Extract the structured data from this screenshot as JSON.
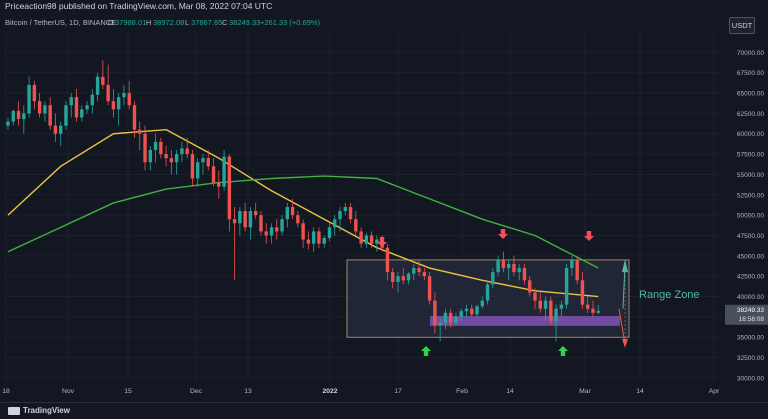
{
  "header": {
    "published_by": "Priceaction98 published on TradingView.com, Mar 08, 2022 07:04 UTC"
  },
  "symbol": {
    "name": "Bitcoin / TetherUS, 1D, BINANCE",
    "o_label": "O",
    "o_value": "37988.01",
    "h_label": "H",
    "h_value": "38972.08",
    "l_label": "L",
    "l_value": "37867.65",
    "c_label": "C",
    "c_value": "38249.33",
    "change": "+261.33 (+0.69%)"
  },
  "currency_button": "USDT",
  "footer": {
    "brand": "TradingView"
  },
  "colors": {
    "background": "#131722",
    "up": "#26a69a",
    "down": "#ef5350",
    "ma_fast": "#e9c440",
    "ma_slow": "#3fb23f",
    "zone_fill": "#2b3346",
    "support_band": "#8e59c6",
    "range_label": "#4fb8a6",
    "arrow_down": "#f24f5f",
    "arrow_up": "#2fd44e"
  },
  "chart_data": {
    "type": "candlestick",
    "x_tick_labels": [
      "18",
      "Nov",
      "15",
      "Dec",
      "13",
      "2022",
      "17",
      "Feb",
      "14",
      "Mar",
      "14",
      "Apr"
    ],
    "y_tick_labels": [
      "70000.00",
      "67500.00",
      "65000.00",
      "62500.00",
      "60000.00",
      "57500.00",
      "55000.00",
      "52500.00",
      "50000.00",
      "47500.00",
      "45000.00",
      "42500.00",
      "40000.00",
      "37500.00",
      "35000.00",
      "32500.00",
      "30000.00"
    ],
    "ylim": [
      29500,
      72500
    ],
    "last_price": "38249.33",
    "countdown": "16:56:08",
    "annotations": {
      "range_zone_label": "Range Zone",
      "range_top": 44500,
      "range_bottom": 35000,
      "support_band": [
        36400,
        37600
      ]
    },
    "candles": [
      [
        61000,
        62000,
        60500,
        61500
      ],
      [
        61500,
        63000,
        61000,
        62800
      ],
      [
        62800,
        64000,
        61000,
        61800
      ],
      [
        61800,
        63500,
        60000,
        62500
      ],
      [
        62500,
        67000,
        62000,
        66000
      ],
      [
        66000,
        66500,
        63000,
        64000
      ],
      [
        64000,
        65000,
        62000,
        62500
      ],
      [
        62500,
        64000,
        61500,
        63500
      ],
      [
        63500,
        64500,
        60500,
        61000
      ],
      [
        61000,
        62500,
        59000,
        60000
      ],
      [
        60000,
        61500,
        58500,
        61000
      ],
      [
        61000,
        64000,
        60500,
        63500
      ],
      [
        63500,
        65000,
        62000,
        64500
      ],
      [
        64500,
        65500,
        61500,
        62000
      ],
      [
        62000,
        63500,
        61500,
        63000
      ],
      [
        63000,
        64000,
        62500,
        63500
      ],
      [
        63500,
        65500,
        62500,
        64800
      ],
      [
        64800,
        67500,
        64000,
        67000
      ],
      [
        67000,
        69000,
        65500,
        66000
      ],
      [
        66000,
        68500,
        63500,
        64000
      ],
      [
        64000,
        65500,
        62000,
        63000
      ],
      [
        63000,
        65000,
        61000,
        64500
      ],
      [
        64500,
        66000,
        63500,
        65000
      ],
      [
        65000,
        66500,
        63000,
        63500
      ],
      [
        63500,
        64000,
        59500,
        60500
      ],
      [
        60500,
        61500,
        58000,
        60000
      ],
      [
        60000,
        61000,
        55500,
        56500
      ],
      [
        56500,
        58500,
        55500,
        58000
      ],
      [
        58000,
        60000,
        56500,
        59000
      ],
      [
        59000,
        59500,
        57000,
        57500
      ],
      [
        57500,
        58500,
        56000,
        57000
      ],
      [
        57000,
        58000,
        55000,
        56500
      ],
      [
        56500,
        58000,
        55000,
        57500
      ],
      [
        57500,
        59000,
        56500,
        58200
      ],
      [
        58200,
        59500,
        57000,
        57500
      ],
      [
        57500,
        58000,
        53500,
        54500
      ],
      [
        54500,
        57000,
        53500,
        56500
      ],
      [
        56500,
        57500,
        55000,
        57000
      ],
      [
        57000,
        58000,
        55500,
        56000
      ],
      [
        56000,
        57000,
        53500,
        54000
      ],
      [
        54000,
        55500,
        52000,
        53500
      ],
      [
        53500,
        58000,
        53000,
        57200
      ],
      [
        57200,
        57500,
        48000,
        49500
      ],
      [
        49500,
        51000,
        42000,
        49000
      ],
      [
        49000,
        51000,
        47500,
        50500
      ],
      [
        50500,
        51500,
        48000,
        48500
      ],
      [
        48500,
        51000,
        47000,
        50500
      ],
      [
        50500,
        51500,
        49500,
        50000
      ],
      [
        50000,
        50500,
        47500,
        48000
      ],
      [
        48000,
        49000,
        46500,
        47500
      ],
      [
        47500,
        49000,
        46500,
        48500
      ],
      [
        48500,
        49500,
        47000,
        48000
      ],
      [
        48000,
        50000,
        47500,
        49500
      ],
      [
        49500,
        51500,
        48500,
        51000
      ],
      [
        51000,
        52000,
        49500,
        50000
      ],
      [
        50000,
        50500,
        48500,
        49000
      ],
      [
        49000,
        49500,
        46000,
        47000
      ],
      [
        47000,
        48000,
        45800,
        46500
      ],
      [
        46500,
        48500,
        45500,
        48000
      ],
      [
        48000,
        48500,
        46000,
        46500
      ],
      [
        46500,
        47500,
        46000,
        47200
      ],
      [
        47200,
        49000,
        46800,
        48500
      ],
      [
        48500,
        50000,
        47500,
        49500
      ],
      [
        49500,
        51000,
        48000,
        50500
      ],
      [
        50500,
        51500,
        50000,
        51000
      ],
      [
        51000,
        51500,
        49000,
        49500
      ],
      [
        49500,
        50500,
        47500,
        48000
      ],
      [
        48000,
        48500,
        46000,
        46500
      ],
      [
        46500,
        47800,
        46000,
        47500
      ],
      [
        47500,
        48000,
        46000,
        46500
      ],
      [
        46500,
        47500,
        45500,
        47000
      ],
      [
        47000,
        47500,
        45500,
        46000
      ],
      [
        46000,
        46500,
        42000,
        43000
      ],
      [
        43000,
        43500,
        41000,
        41800
      ],
      [
        41800,
        43000,
        40500,
        42500
      ],
      [
        42500,
        43500,
        41500,
        42000
      ],
      [
        42000,
        43000,
        41500,
        42800
      ],
      [
        42800,
        44000,
        42000,
        43500
      ],
      [
        43500,
        44500,
        42500,
        43000
      ],
      [
        43000,
        43500,
        42000,
        42500
      ],
      [
        42500,
        43000,
        39000,
        39500
      ],
      [
        39500,
        40500,
        35500,
        36500
      ],
      [
        36500,
        37500,
        34500,
        36800
      ],
      [
        36800,
        38500,
        36000,
        38000
      ],
      [
        38000,
        38500,
        36200,
        36800
      ],
      [
        36800,
        38000,
        36500,
        37500
      ],
      [
        37500,
        38500,
        37000,
        38200
      ],
      [
        38200,
        39000,
        37500,
        38500
      ],
      [
        38500,
        39000,
        37500,
        37800
      ],
      [
        37800,
        39000,
        37500,
        38800
      ],
      [
        38800,
        40000,
        38500,
        39500
      ],
      [
        39500,
        42000,
        39000,
        41500
      ],
      [
        41500,
        43500,
        41000,
        43000
      ],
      [
        43000,
        45000,
        42500,
        44500
      ],
      [
        44500,
        45500,
        43000,
        43500
      ],
      [
        43500,
        44500,
        42000,
        44000
      ],
      [
        44000,
        45000,
        42500,
        43000
      ],
      [
        43000,
        44000,
        42000,
        43500
      ],
      [
        43500,
        44000,
        41500,
        42000
      ],
      [
        42000,
        42500,
        40000,
        40500
      ],
      [
        40500,
        41000,
        38500,
        39500
      ],
      [
        39500,
        40500,
        38000,
        38500
      ],
      [
        38500,
        40000,
        37000,
        39500
      ],
      [
        39500,
        40000,
        36500,
        37000
      ],
      [
        37000,
        39000,
        34500,
        38500
      ],
      [
        38500,
        39500,
        37500,
        39000
      ],
      [
        39000,
        44000,
        38500,
        43500
      ],
      [
        43500,
        45000,
        42500,
        44500
      ],
      [
        44500,
        45000,
        41500,
        42000
      ],
      [
        42000,
        43000,
        38500,
        39000
      ],
      [
        39000,
        40000,
        38000,
        38500
      ],
      [
        38500,
        39500,
        37500,
        38000
      ],
      [
        38000,
        38972,
        37867,
        38249
      ]
    ],
    "series": [
      {
        "name": "",
        "color_key": "ma_fast",
        "x": [
          0,
          10,
          20,
          30,
          40,
          50,
          60,
          70,
          80,
          90,
          100,
          112
        ],
        "values": [
          50000,
          56000,
          60000,
          60500,
          57000,
          53000,
          49500,
          46000,
          43500,
          42000,
          40700,
          40000
        ]
      },
      {
        "name": "",
        "color_key": "ma_slow",
        "x": [
          0,
          10,
          20,
          30,
          40,
          50,
          60,
          70,
          80,
          90,
          100,
          112
        ],
        "values": [
          45500,
          48500,
          51500,
          53200,
          54000,
          54500,
          54800,
          54500,
          52000,
          49500,
          47500,
          43500
        ]
      }
    ]
  }
}
